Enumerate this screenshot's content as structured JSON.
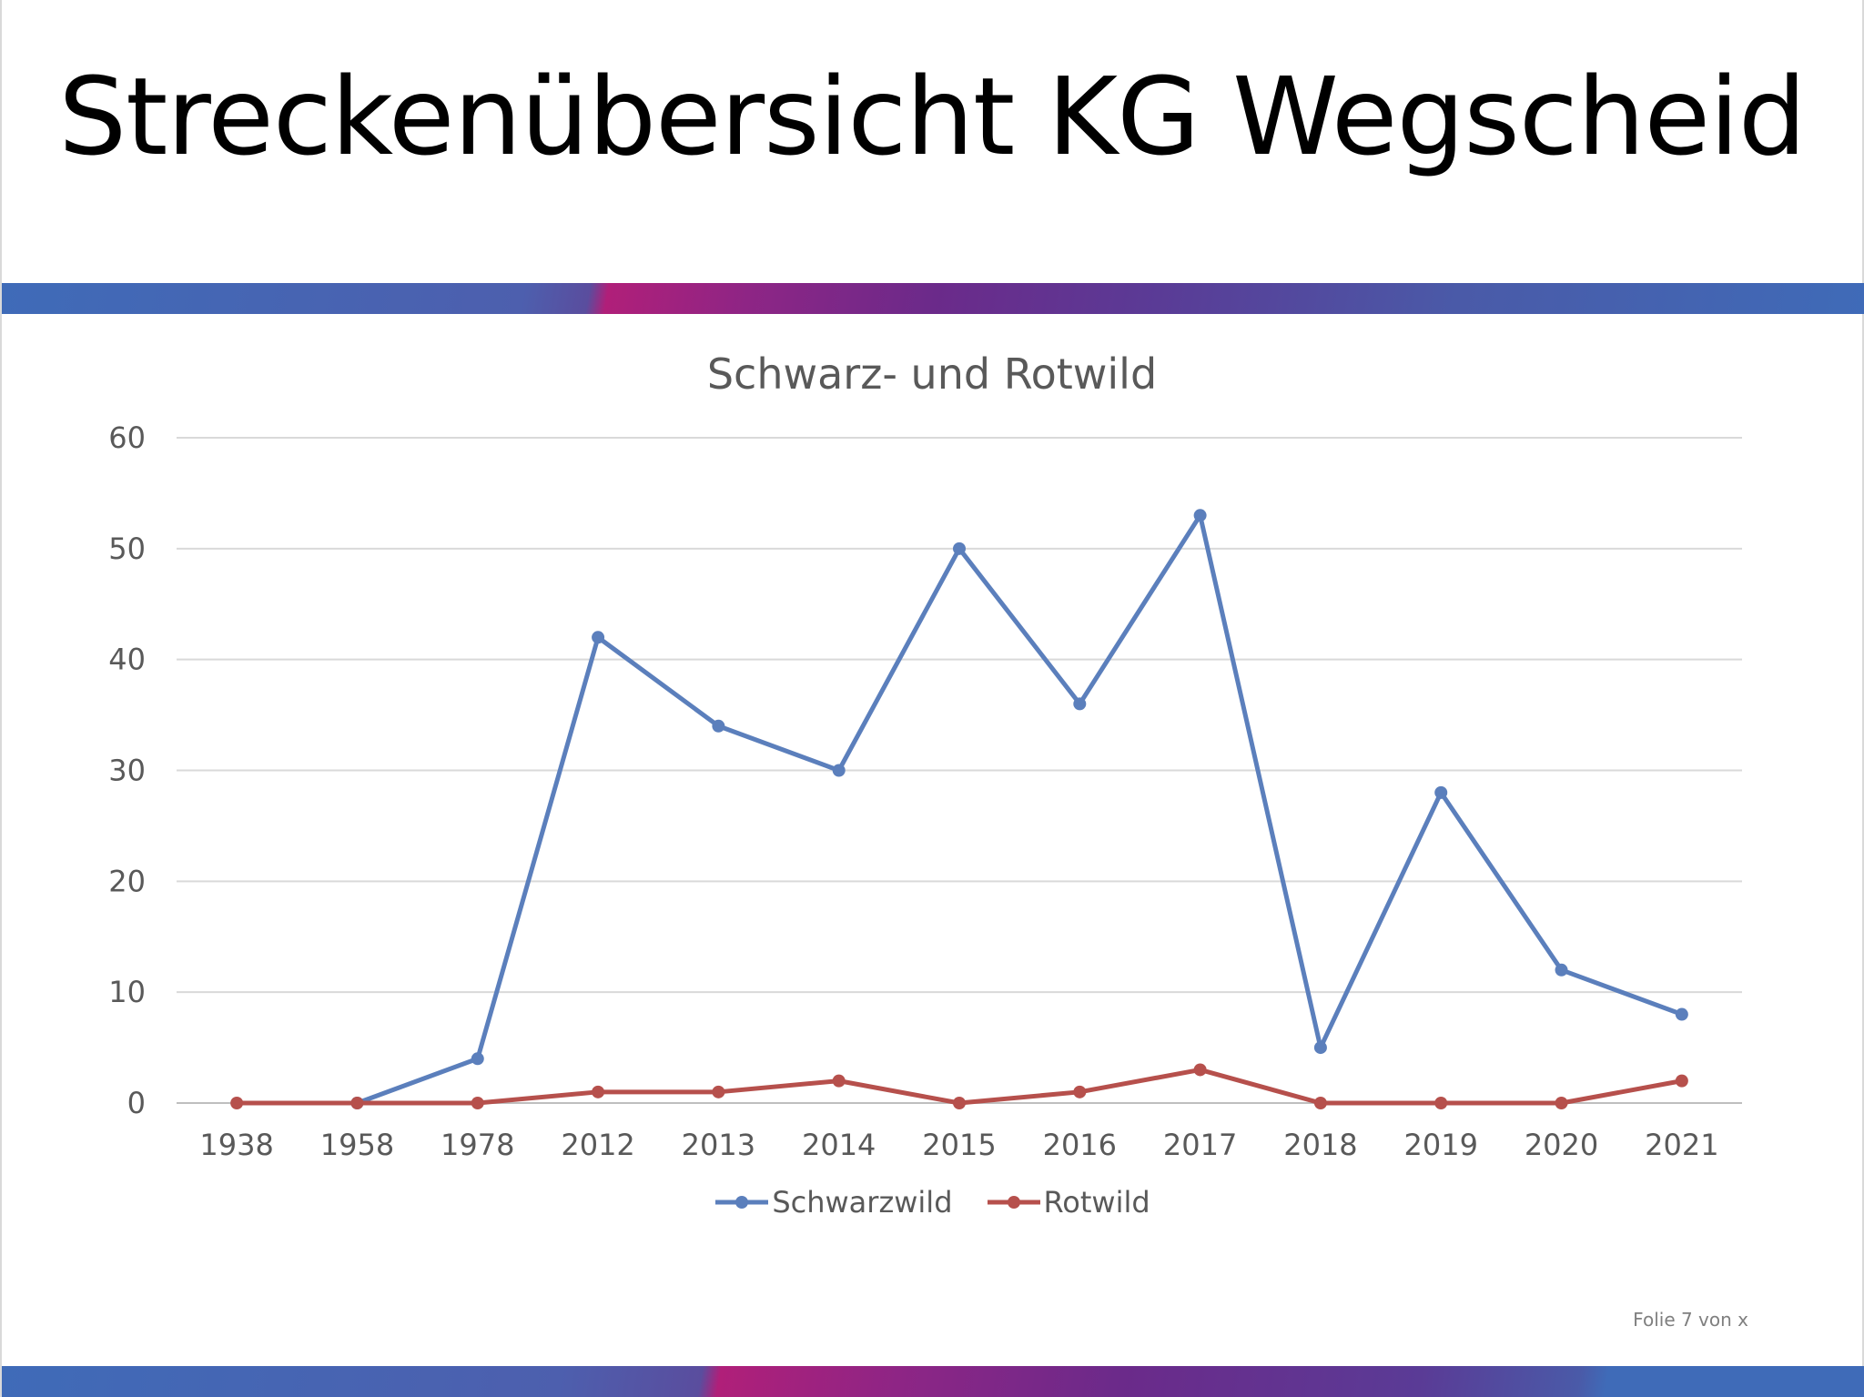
{
  "slide": {
    "title": "Streckenübersicht KG Wegscheid",
    "footer": "Folie 7 von x"
  },
  "colors": {
    "band_blue": "#3f6bb8",
    "band_magenta": "#b01f79",
    "band_purple": "#6b2a8a"
  },
  "chart_data": {
    "type": "line",
    "title": "Schwarz- und Rotwild",
    "xlabel": "",
    "ylabel": "",
    "categories": [
      "1938",
      "1958",
      "1978",
      "2012",
      "2013",
      "2014",
      "2015",
      "2016",
      "2017",
      "2018",
      "2019",
      "2020",
      "2021"
    ],
    "ylim": [
      0,
      60
    ],
    "yticks": [
      0,
      10,
      20,
      30,
      40,
      50,
      60
    ],
    "grid": true,
    "legend_position": "bottom",
    "series": [
      {
        "name": "Schwarzwild",
        "color": "#5b7fbc",
        "values": [
          null,
          0,
          4,
          42,
          34,
          30,
          50,
          36,
          53,
          5,
          28,
          12,
          8
        ]
      },
      {
        "name": "Rotwild",
        "color": "#b6504c",
        "values": [
          0,
          0,
          0,
          1,
          1,
          2,
          0,
          1,
          3,
          0,
          0,
          0,
          2
        ]
      }
    ]
  }
}
